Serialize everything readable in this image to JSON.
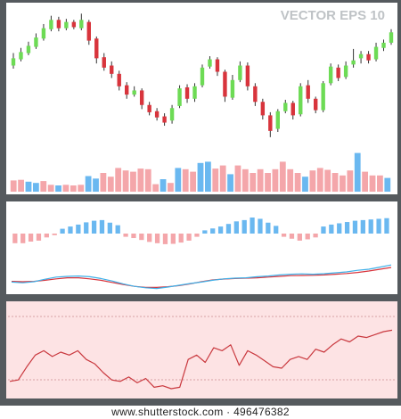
{
  "header_text": "VECTOR  EPS 10",
  "watermark": "www.shutterstock.com · 496476382",
  "colors": {
    "bull": "#6ddb55",
    "bear": "#d8343c",
    "vol_bull": "#6ab8f0",
    "vol_bear": "#f4a6aa",
    "line_blue": "#3fb0e8",
    "line_red": "#d8343c",
    "rsi_line": "#c9383e",
    "rsi_band": "#fde3e4",
    "rsi_band_edge": "#c98b8e"
  },
  "chart_data": [
    {
      "type": "candlestick",
      "title": "",
      "candles": [
        {
          "o": 0.48,
          "c": 0.55,
          "h": 0.6,
          "l": 0.45
        },
        {
          "o": 0.54,
          "c": 0.61,
          "h": 0.65,
          "l": 0.52
        },
        {
          "o": 0.6,
          "c": 0.67,
          "h": 0.71,
          "l": 0.58
        },
        {
          "o": 0.66,
          "c": 0.75,
          "h": 0.79,
          "l": 0.64
        },
        {
          "o": 0.74,
          "c": 0.84,
          "h": 0.88,
          "l": 0.72
        },
        {
          "o": 0.83,
          "c": 0.92,
          "h": 0.96,
          "l": 0.81
        },
        {
          "o": 0.92,
          "c": 0.84,
          "h": 0.95,
          "l": 0.81
        },
        {
          "o": 0.84,
          "c": 0.9,
          "h": 0.93,
          "l": 0.82
        },
        {
          "o": 0.9,
          "c": 0.85,
          "h": 0.92,
          "l": 0.83
        },
        {
          "o": 0.84,
          "c": 0.92,
          "h": 0.98,
          "l": 0.82
        },
        {
          "o": 0.9,
          "c": 0.72,
          "h": 0.92,
          "l": 0.68
        },
        {
          "o": 0.74,
          "c": 0.55,
          "h": 0.76,
          "l": 0.5
        },
        {
          "o": 0.56,
          "c": 0.46,
          "h": 0.6,
          "l": 0.43
        },
        {
          "o": 0.48,
          "c": 0.4,
          "h": 0.52,
          "l": 0.36
        },
        {
          "o": 0.4,
          "c": 0.28,
          "h": 0.43,
          "l": 0.24
        },
        {
          "o": 0.29,
          "c": 0.2,
          "h": 0.32,
          "l": 0.16
        },
        {
          "o": 0.2,
          "c": 0.24,
          "h": 0.28,
          "l": 0.18
        },
        {
          "o": 0.24,
          "c": 0.1,
          "h": 0.26,
          "l": 0.06
        },
        {
          "o": 0.1,
          "c": 0.03,
          "h": 0.13,
          "l": 0.0
        },
        {
          "o": 0.04,
          "c": -0.02,
          "h": 0.07,
          "l": -0.05
        },
        {
          "o": -0.01,
          "c": -0.07,
          "h": 0.02,
          "l": -0.1
        },
        {
          "o": -0.05,
          "c": 0.07,
          "h": 0.1,
          "l": -0.08
        },
        {
          "o": 0.09,
          "c": 0.26,
          "h": 0.29,
          "l": 0.07
        },
        {
          "o": 0.27,
          "c": 0.16,
          "h": 0.3,
          "l": 0.12
        },
        {
          "o": 0.16,
          "c": 0.28,
          "h": 0.31,
          "l": 0.13
        },
        {
          "o": 0.29,
          "c": 0.46,
          "h": 0.49,
          "l": 0.27
        },
        {
          "o": 0.47,
          "c": 0.54,
          "h": 0.57,
          "l": 0.45
        },
        {
          "o": 0.54,
          "c": 0.42,
          "h": 0.56,
          "l": 0.38
        },
        {
          "o": 0.42,
          "c": 0.18,
          "h": 0.44,
          "l": 0.13
        },
        {
          "o": 0.17,
          "c": 0.34,
          "h": 0.39,
          "l": 0.15
        },
        {
          "o": 0.34,
          "c": 0.48,
          "h": 0.52,
          "l": 0.32
        },
        {
          "o": 0.48,
          "c": 0.28,
          "h": 0.51,
          "l": 0.24
        },
        {
          "o": 0.28,
          "c": 0.13,
          "h": 0.31,
          "l": 0.09
        },
        {
          "o": 0.13,
          "c": 0.0,
          "h": 0.16,
          "l": -0.04
        },
        {
          "o": 0.0,
          "c": -0.15,
          "h": 0.03,
          "l": -0.21
        },
        {
          "o": -0.13,
          "c": 0.04,
          "h": 0.06,
          "l": -0.16
        },
        {
          "o": 0.04,
          "c": 0.12,
          "h": 0.15,
          "l": 0.02
        },
        {
          "o": 0.12,
          "c": 0.0,
          "h": 0.14,
          "l": -0.04
        },
        {
          "o": 0.01,
          "c": 0.28,
          "h": 0.31,
          "l": -0.01
        },
        {
          "o": 0.29,
          "c": 0.16,
          "h": 0.34,
          "l": 0.12
        },
        {
          "o": 0.16,
          "c": 0.05,
          "h": 0.18,
          "l": 0.02
        },
        {
          "o": 0.05,
          "c": 0.31,
          "h": 0.33,
          "l": 0.03
        },
        {
          "o": 0.31,
          "c": 0.47,
          "h": 0.5,
          "l": 0.29
        },
        {
          "o": 0.46,
          "c": 0.36,
          "h": 0.49,
          "l": 0.33
        },
        {
          "o": 0.37,
          "c": 0.48,
          "h": 0.52,
          "l": 0.35
        },
        {
          "o": 0.49,
          "c": 0.53,
          "h": 0.64,
          "l": 0.46
        },
        {
          "o": 0.55,
          "c": 0.59,
          "h": 0.62,
          "l": 0.5
        },
        {
          "o": 0.59,
          "c": 0.53,
          "h": 0.62,
          "l": 0.5
        },
        {
          "o": 0.54,
          "c": 0.66,
          "h": 0.7,
          "l": 0.52
        },
        {
          "o": 0.65,
          "c": 0.7,
          "h": 0.73,
          "l": 0.62
        },
        {
          "o": 0.7,
          "c": 0.8,
          "h": 0.83,
          "l": 0.68
        }
      ],
      "volume": [
        {
          "v": 0.18,
          "up": false
        },
        {
          "v": 0.19,
          "up": false
        },
        {
          "v": 0.16,
          "up": true
        },
        {
          "v": 0.14,
          "up": true
        },
        {
          "v": 0.17,
          "up": false
        },
        {
          "v": 0.11,
          "up": false
        },
        {
          "v": 0.1,
          "up": true
        },
        {
          "v": 0.11,
          "up": false
        },
        {
          "v": 0.1,
          "up": false
        },
        {
          "v": 0.11,
          "up": false
        },
        {
          "v": 0.25,
          "up": true
        },
        {
          "v": 0.21,
          "up": true
        },
        {
          "v": 0.3,
          "up": false
        },
        {
          "v": 0.24,
          "up": false
        },
        {
          "v": 0.38,
          "up": false
        },
        {
          "v": 0.34,
          "up": false
        },
        {
          "v": 0.32,
          "up": false
        },
        {
          "v": 0.37,
          "up": false
        },
        {
          "v": 0.36,
          "up": false
        },
        {
          "v": 0.12,
          "up": false
        },
        {
          "v": 0.2,
          "up": true
        },
        {
          "v": 0.14,
          "up": false
        },
        {
          "v": 0.38,
          "up": true
        },
        {
          "v": 0.36,
          "up": false
        },
        {
          "v": 0.32,
          "up": false
        },
        {
          "v": 0.46,
          "up": true
        },
        {
          "v": 0.48,
          "up": true
        },
        {
          "v": 0.37,
          "up": false
        },
        {
          "v": 0.42,
          "up": false
        },
        {
          "v": 0.28,
          "up": true
        },
        {
          "v": 0.42,
          "up": false
        },
        {
          "v": 0.36,
          "up": false
        },
        {
          "v": 0.3,
          "up": false
        },
        {
          "v": 0.36,
          "up": false
        },
        {
          "v": 0.3,
          "up": false
        },
        {
          "v": 0.36,
          "up": false
        },
        {
          "v": 0.48,
          "up": false
        },
        {
          "v": 0.36,
          "up": false
        },
        {
          "v": 0.3,
          "up": false
        },
        {
          "v": 0.24,
          "up": true
        },
        {
          "v": 0.34,
          "up": false
        },
        {
          "v": 0.38,
          "up": false
        },
        {
          "v": 0.35,
          "up": false
        },
        {
          "v": 0.3,
          "up": false
        },
        {
          "v": 0.26,
          "up": false
        },
        {
          "v": 0.34,
          "up": false
        },
        {
          "v": 0.62,
          "up": true
        },
        {
          "v": 0.32,
          "up": false
        },
        {
          "v": 0.26,
          "up": false
        },
        {
          "v": 0.26,
          "up": false
        },
        {
          "v": 0.22,
          "up": true
        }
      ]
    },
    {
      "type": "macd",
      "title": "",
      "histogram": [
        -0.3,
        -0.3,
        -0.25,
        -0.22,
        -0.12,
        -0.05,
        0.15,
        0.22,
        0.28,
        0.35,
        0.4,
        0.42,
        0.34,
        0.26,
        -0.1,
        -0.14,
        -0.2,
        -0.26,
        -0.3,
        -0.33,
        -0.32,
        -0.28,
        -0.22,
        -0.1,
        0.1,
        0.16,
        0.22,
        0.3,
        0.38,
        0.42,
        0.5,
        0.46,
        0.34,
        0.24,
        -0.1,
        -0.16,
        -0.22,
        -0.18,
        -0.12,
        0.22,
        0.28,
        0.32,
        0.36,
        0.4,
        0.42,
        0.44,
        0.46,
        0.48
      ],
      "signal": [
        -0.58,
        -0.6,
        -0.58,
        -0.52,
        -0.44,
        -0.38,
        -0.38,
        -0.44,
        -0.52,
        -0.64,
        -0.76,
        -0.86,
        -0.92,
        -0.92,
        -0.88,
        -0.82,
        -0.72,
        -0.6,
        -0.5,
        -0.45,
        -0.42,
        -0.4,
        -0.38,
        -0.34,
        -0.3,
        -0.26,
        -0.25,
        -0.24,
        -0.22,
        -0.18,
        -0.14,
        -0.08,
        0.0,
        0.1,
        0.2
      ],
      "macd": [
        -0.62,
        -0.66,
        -0.6,
        -0.46,
        -0.34,
        -0.3,
        -0.28,
        -0.32,
        -0.42,
        -0.56,
        -0.72,
        -0.86,
        -0.94,
        -0.98,
        -0.9,
        -0.8,
        -0.7,
        -0.62,
        -0.52,
        -0.44,
        -0.4,
        -0.38,
        -0.32,
        -0.28,
        -0.22,
        -0.18,
        -0.16,
        -0.18,
        -0.15,
        -0.1,
        -0.05,
        0.04,
        0.1,
        0.22,
        0.34
      ]
    },
    {
      "type": "line",
      "title": "",
      "band": [
        0.22,
        0.92
      ],
      "values": [
        0.1,
        0.12,
        0.3,
        0.46,
        0.52,
        0.44,
        0.5,
        0.46,
        0.52,
        0.4,
        0.34,
        0.22,
        0.12,
        0.1,
        0.16,
        0.08,
        0.14,
        0.02,
        0.04,
        0.0,
        0.02,
        0.4,
        0.46,
        0.36,
        0.56,
        0.52,
        0.6,
        0.32,
        0.52,
        0.46,
        0.38,
        0.3,
        0.28,
        0.4,
        0.44,
        0.4,
        0.54,
        0.5,
        0.6,
        0.68,
        0.64,
        0.72,
        0.7,
        0.74,
        0.78,
        0.8
      ]
    }
  ]
}
